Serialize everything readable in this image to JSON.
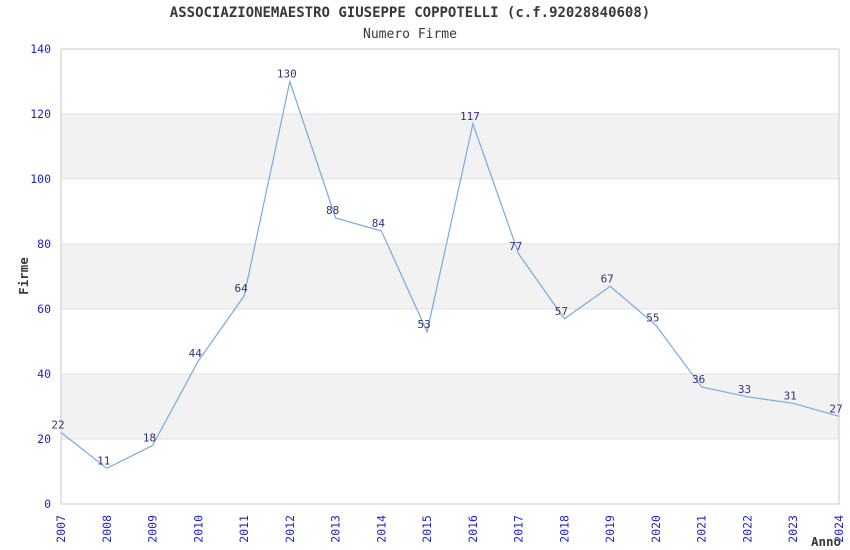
{
  "chart_data": {
    "type": "line",
    "title": "ASSOCIAZIONEMAESTRO GIUSEPPE COPPOTELLI (c.f.92028840608)",
    "subtitle": "Numero Firme",
    "xlabel": "Anno",
    "ylabel": "Firme",
    "categories": [
      "2007",
      "2008",
      "2009",
      "2010",
      "2011",
      "2012",
      "2013",
      "2014",
      "2015",
      "2016",
      "2017",
      "2018",
      "2019",
      "2020",
      "2021",
      "2022",
      "2023",
      "2024"
    ],
    "series": [
      {
        "name": "Numero Firme",
        "values": [
          22,
          11,
          18,
          44,
          64,
          130,
          88,
          84,
          53,
          117,
          77,
          57,
          67,
          55,
          36,
          33,
          31,
          27
        ]
      }
    ],
    "ylim": [
      0,
      140
    ],
    "ytick_step": 20,
    "yticks": [
      0,
      20,
      40,
      60,
      80,
      100,
      120,
      140
    ],
    "grid": "horizontal",
    "bands": "alternating-gray",
    "legend": "none",
    "point_labels": true,
    "colors": {
      "line": "#76abe3",
      "point_label": "#333377",
      "tick_label": "#2222cc",
      "axis_title": "#383838",
      "title": "#383838",
      "band": "#f2f2f2",
      "gridline": "#e0e0e0",
      "plot_border": "#c9c9c9",
      "background": "#ffffff"
    }
  }
}
